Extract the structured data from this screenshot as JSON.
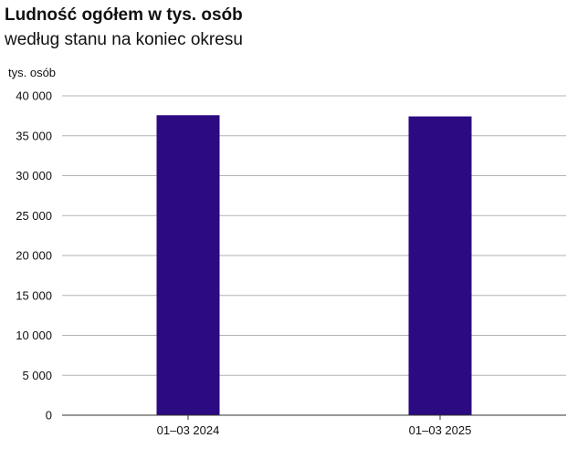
{
  "chart_data": {
    "type": "bar",
    "title": "Ludność ogółem w tys. osób",
    "subtitle": "według stanu na koniec okresu",
    "ylabel": "tys. osób",
    "xlabel": "",
    "categories": [
      "01–03 2024",
      "01–03 2025"
    ],
    "values": [
      37570,
      37420
    ],
    "ylim": [
      0,
      40000
    ],
    "yticks": [
      0,
      5000,
      10000,
      15000,
      20000,
      25000,
      30000,
      35000,
      40000
    ],
    "ytick_labels": [
      "0",
      "5 000",
      "10 000",
      "15 000",
      "20 000",
      "25 000",
      "30 000",
      "35 000",
      "40 000"
    ],
    "grid": true,
    "legend": "none",
    "bar_color": "#2b0a82",
    "grid_color": "#b3b3b3",
    "axis_color": "#333333"
  }
}
